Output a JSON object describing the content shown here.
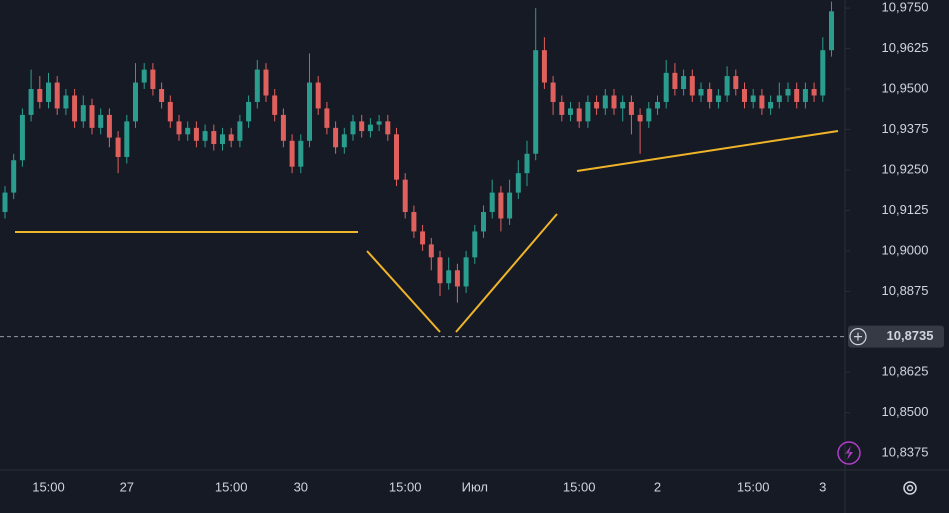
{
  "chart_data": {
    "type": "candlestick",
    "categories": [
      null,
      null,
      null,
      null,
      null,
      "15:00",
      null,
      null,
      null,
      null,
      null,
      null,
      null,
      null,
      "27",
      null,
      null,
      null,
      null,
      null,
      null,
      null,
      null,
      null,
      null,
      null,
      "15:00",
      null,
      null,
      null,
      null,
      null,
      null,
      null,
      "30",
      null,
      null,
      null,
      null,
      null,
      null,
      null,
      null,
      null,
      null,
      null,
      "15:00",
      null,
      null,
      null,
      null,
      null,
      null,
      null,
      "Июл",
      null,
      null,
      null,
      null,
      null,
      null,
      null,
      null,
      null,
      null,
      null,
      "15:00",
      null,
      null,
      null,
      null,
      null,
      null,
      null,
      null,
      "2",
      null,
      null,
      null,
      null,
      null,
      null,
      null,
      null,
      null,
      null,
      "15:00",
      null,
      null,
      null,
      null,
      null,
      null,
      null,
      "3",
      null
    ],
    "open": [
      10.912,
      10.918,
      10.928,
      10.942,
      10.95,
      10.946,
      10.952,
      10.944,
      10.948,
      10.94,
      10.945,
      10.938,
      10.942,
      10.935,
      10.929,
      10.94,
      10.952,
      10.956,
      10.95,
      10.946,
      10.94,
      10.936,
      10.938,
      10.934,
      10.937,
      10.933,
      10.936,
      10.934,
      10.94,
      10.946,
      10.956,
      10.948,
      10.942,
      10.934,
      10.926,
      10.934,
      10.952,
      10.944,
      10.938,
      10.932,
      10.936,
      10.94,
      10.937,
      10.939,
      10.94,
      10.936,
      10.922,
      10.912,
      10.906,
      10.902,
      10.898,
      10.89,
      10.894,
      10.889,
      10.898,
      10.906,
      10.912,
      10.918,
      10.91,
      10.918,
      10.924,
      10.93,
      10.962,
      10.952,
      10.946,
      10.942,
      10.944,
      10.94,
      10.946,
      10.944,
      10.948,
      10.944,
      10.946,
      10.942,
      10.94,
      10.944,
      10.946,
      10.955,
      10.95,
      10.954,
      10.948,
      10.95,
      10.946,
      10.948,
      10.954,
      10.95,
      10.946,
      10.948,
      10.944,
      10.946,
      10.948,
      10.95,
      10.946,
      10.95,
      10.948,
      10.962
    ],
    "high": [
      10.92,
      10.93,
      10.944,
      10.956,
      10.954,
      10.955,
      10.954,
      10.95,
      10.95,
      10.948,
      10.947,
      10.944,
      10.944,
      10.937,
      10.942,
      10.958,
      10.958,
      10.958,
      10.952,
      10.948,
      10.942,
      10.94,
      10.94,
      10.939,
      10.939,
      10.938,
      10.938,
      10.942,
      10.948,
      10.959,
      10.958,
      10.95,
      10.944,
      10.936,
      10.936,
      10.961,
      10.954,
      10.946,
      10.94,
      10.938,
      10.942,
      10.942,
      10.941,
      10.942,
      10.942,
      10.938,
      10.924,
      10.914,
      10.908,
      10.904,
      10.9,
      10.898,
      10.896,
      10.9,
      10.908,
      10.914,
      10.922,
      10.92,
      10.922,
      10.928,
      10.934,
      10.975,
      10.966,
      10.954,
      10.948,
      10.946,
      10.946,
      10.948,
      10.948,
      10.95,
      10.95,
      10.948,
      10.948,
      10.944,
      10.946,
      10.948,
      10.959,
      10.958,
      10.956,
      10.956,
      10.952,
      10.952,
      10.95,
      10.957,
      10.956,
      10.952,
      10.95,
      10.95,
      10.948,
      10.952,
      10.952,
      10.952,
      10.952,
      10.952,
      10.966,
      10.977
    ],
    "low": [
      10.91,
      10.916,
      10.926,
      10.94,
      10.944,
      10.944,
      10.942,
      10.942,
      10.938,
      10.938,
      10.936,
      10.936,
      10.932,
      10.924,
      10.927,
      10.938,
      10.95,
      10.948,
      10.944,
      10.938,
      10.934,
      10.934,
      10.932,
      10.932,
      10.931,
      10.931,
      10.932,
      10.932,
      10.938,
      10.944,
      10.946,
      10.94,
      10.932,
      10.924,
      10.924,
      10.932,
      10.942,
      10.936,
      10.93,
      10.93,
      10.934,
      10.935,
      10.935,
      10.937,
      10.934,
      10.92,
      10.91,
      10.904,
      10.9,
      10.894,
      10.886,
      10.888,
      10.884,
      10.887,
      10.896,
      10.904,
      10.91,
      10.906,
      10.908,
      10.916,
      10.92,
      10.928,
      10.95,
      10.942,
      10.94,
      10.94,
      10.938,
      10.938,
      10.942,
      10.942,
      10.942,
      10.94,
      10.936,
      10.93,
      10.938,
      10.942,
      10.944,
      10.948,
      10.948,
      10.946,
      10.946,
      10.944,
      10.944,
      10.946,
      10.948,
      10.944,
      10.944,
      10.942,
      10.942,
      10.944,
      10.946,
      10.944,
      10.944,
      10.946,
      10.946,
      10.96
    ],
    "close": [
      10.918,
      10.928,
      10.942,
      10.95,
      10.946,
      10.952,
      10.944,
      10.948,
      10.94,
      10.945,
      10.938,
      10.942,
      10.935,
      10.929,
      10.94,
      10.952,
      10.956,
      10.95,
      10.946,
      10.94,
      10.936,
      10.938,
      10.934,
      10.937,
      10.933,
      10.936,
      10.934,
      10.94,
      10.946,
      10.956,
      10.948,
      10.942,
      10.934,
      10.926,
      10.934,
      10.952,
      10.944,
      10.938,
      10.932,
      10.936,
      10.94,
      10.937,
      10.939,
      10.94,
      10.936,
      10.922,
      10.912,
      10.906,
      10.902,
      10.898,
      10.89,
      10.894,
      10.889,
      10.898,
      10.906,
      10.912,
      10.918,
      10.91,
      10.918,
      10.924,
      10.93,
      10.962,
      10.952,
      10.946,
      10.942,
      10.944,
      10.94,
      10.946,
      10.944,
      10.948,
      10.944,
      10.946,
      10.942,
      10.94,
      10.944,
      10.946,
      10.955,
      10.95,
      10.954,
      10.948,
      10.95,
      10.946,
      10.948,
      10.954,
      10.95,
      10.946,
      10.948,
      10.944,
      10.946,
      10.948,
      10.95,
      10.946,
      10.95,
      10.948,
      10.962,
      10.974
    ],
    "up_color": "#2a9d8f",
    "down_color": "#e0605e",
    "ylim": [
      10.8323,
      10.9775
    ],
    "yticks": [
      {
        "value": 10.8375,
        "label": "10,8375"
      },
      {
        "value": 10.85,
        "label": "10,8500"
      },
      {
        "value": 10.8625,
        "label": "10,8625"
      },
      {
        "value": 10.8875,
        "label": "10,8875"
      },
      {
        "value": 10.9,
        "label": "10,9000"
      },
      {
        "value": 10.9125,
        "label": "10,9125"
      },
      {
        "value": 10.925,
        "label": "10,9250"
      },
      {
        "value": 10.9375,
        "label": "10,9375"
      },
      {
        "value": 10.95,
        "label": "10,9500"
      },
      {
        "value": 10.9625,
        "label": "10,9625"
      },
      {
        "value": 10.975,
        "label": "10,9750"
      }
    ],
    "current_price": {
      "value": 10.8735,
      "label": "10,8735"
    },
    "grid": false
  }
}
